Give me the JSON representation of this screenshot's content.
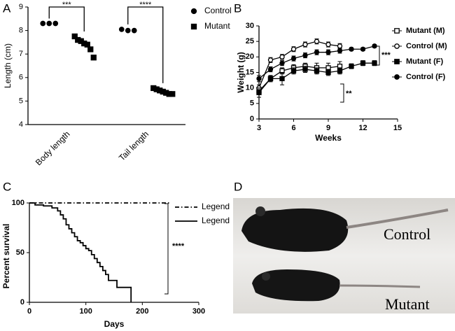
{
  "chart_data": [
    {
      "panel_label": "A",
      "type": "dot",
      "y_label": "Length (cm)",
      "categories": [
        "Body length",
        "Tail length"
      ],
      "ylim": [
        4,
        9
      ],
      "yticks": [
        4,
        5,
        6,
        7,
        8,
        9
      ],
      "series": [
        {
          "name": "Control",
          "marker": "circle",
          "color": "#000000",
          "values": [
            [
              8.3,
              8.3,
              8.3
            ],
            [
              8.05,
              8.0,
              8.0
            ]
          ]
        },
        {
          "name": "Mutant",
          "marker": "square",
          "color": "#000000",
          "values": [
            [
              7.75,
              7.6,
              7.55,
              7.45,
              7.4,
              7.2,
              6.85
            ],
            [
              5.55,
              5.5,
              5.45,
              5.4,
              5.35,
              5.3,
              5.3
            ]
          ]
        }
      ],
      "annotations": [
        "***",
        "****"
      ]
    },
    {
      "panel_label": "B",
      "type": "line",
      "x_label": "Weeks",
      "y_label": "Weight (g)",
      "xlim": [
        3,
        15
      ],
      "xticks": [
        3,
        6,
        9,
        12,
        15
      ],
      "ylim": [
        0,
        30
      ],
      "yticks": [
        0,
        5,
        10,
        15,
        20,
        25,
        30
      ],
      "series": [
        {
          "name": "Mutant (M)",
          "marker": "square",
          "filled": false,
          "color": "#000000",
          "x": [
            3,
            4,
            5,
            6,
            7,
            8,
            9,
            10
          ],
          "values": [
            9,
            13,
            15.5,
            16.5,
            17,
            16.5,
            16.5,
            17
          ],
          "errors": [
            1,
            1,
            1,
            1,
            1,
            1.5,
            1.5,
            1.5
          ]
        },
        {
          "name": "Control (M)",
          "marker": "circle",
          "filled": false,
          "color": "#000000",
          "x": [
            3,
            4,
            5,
            6,
            7,
            8,
            9,
            10
          ],
          "values": [
            10,
            19,
            20,
            22.5,
            24,
            25,
            24,
            23.5
          ],
          "errors": [
            1,
            0.8,
            0.8,
            0.8,
            0.8,
            0.8,
            0.8,
            0.8
          ]
        },
        {
          "name": "Mutant (F)",
          "marker": "square",
          "filled": true,
          "color": "#000000",
          "x": [
            3,
            4,
            5,
            6,
            7,
            8,
            9,
            10,
            11,
            12,
            13
          ],
          "values": [
            8.5,
            13,
            13,
            15.5,
            16,
            15.5,
            15,
            15.5,
            17,
            18,
            18
          ],
          "errors": [
            1.5,
            1,
            2,
            1,
            1,
            1,
            1,
            1,
            0.8,
            0.8,
            0.8
          ]
        },
        {
          "name": "Control (F)",
          "marker": "circle",
          "filled": true,
          "color": "#000000",
          "x": [
            3,
            4,
            5,
            6,
            7,
            8,
            9,
            10,
            11,
            12,
            13
          ],
          "values": [
            13,
            16,
            18,
            19.5,
            20.5,
            21.5,
            21.5,
            22,
            22.5,
            22.5,
            23.5
          ],
          "errors": [
            1,
            0.8,
            0.8,
            0.8,
            0.8,
            0.8,
            0.8,
            0.8,
            0.5,
            0.5,
            0.5
          ]
        }
      ],
      "annotations": [
        "**",
        "***"
      ]
    },
    {
      "panel_label": "C",
      "type": "step",
      "x_label": "Days",
      "y_label": "Percent survival",
      "xlim": [
        0,
        300
      ],
      "xticks": [
        0,
        100,
        200,
        300
      ],
      "ylim": [
        0,
        100
      ],
      "yticks": [
        0,
        50,
        100
      ],
      "series": [
        {
          "name": "Legend",
          "line_style": "dash-dot",
          "color": "#000000",
          "x": [
            0,
            250
          ],
          "values": [
            100,
            100
          ]
        },
        {
          "name": "Legend",
          "line_style": "solid",
          "color": "#000000",
          "x": [
            0,
            10,
            25,
            40,
            50,
            55,
            60,
            65,
            70,
            75,
            80,
            85,
            90,
            95,
            100,
            105,
            110,
            115,
            120,
            125,
            130,
            135,
            140,
            155,
            180
          ],
          "values": [
            100,
            98,
            97,
            95,
            92,
            88,
            84,
            78,
            74,
            70,
            66,
            62,
            60,
            57,
            54,
            52,
            48,
            44,
            40,
            36,
            32,
            28,
            22,
            15,
            0
          ]
        }
      ],
      "annotations": [
        "****"
      ]
    }
  ],
  "photo": {
    "panel_label": "D",
    "labels": [
      "Control",
      "Mutant"
    ]
  }
}
